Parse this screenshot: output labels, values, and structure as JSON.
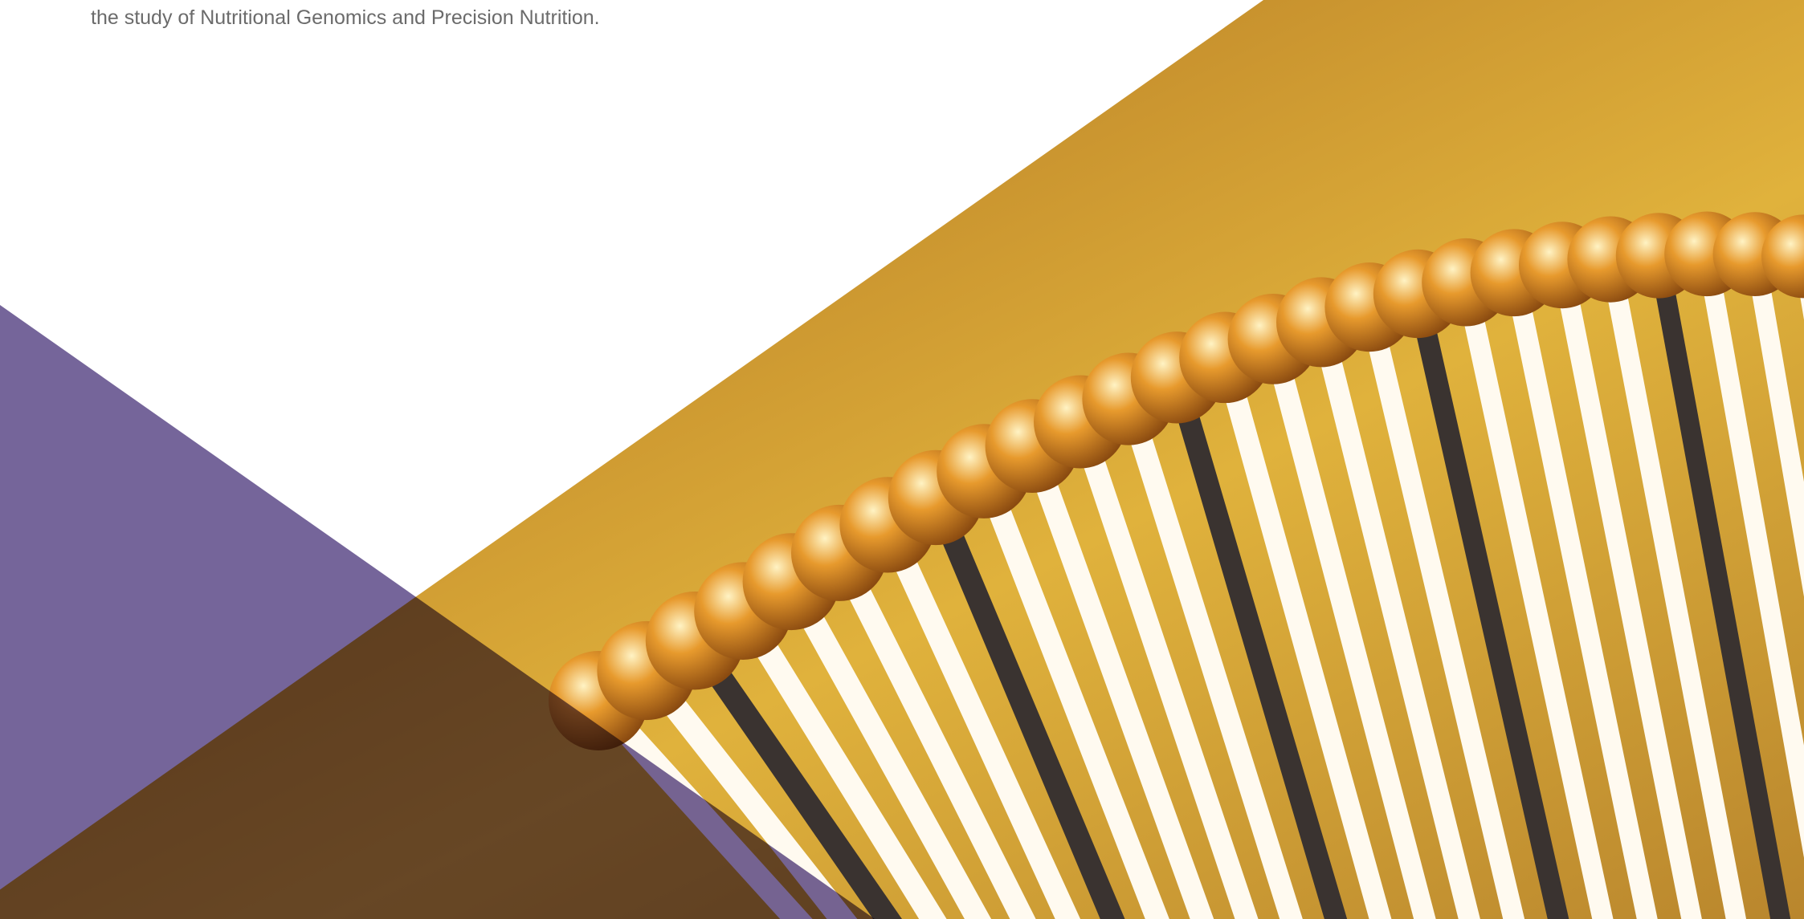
{
  "intro": {
    "text": "the study of Nutritional Genomics and Precision Nutrition."
  }
}
